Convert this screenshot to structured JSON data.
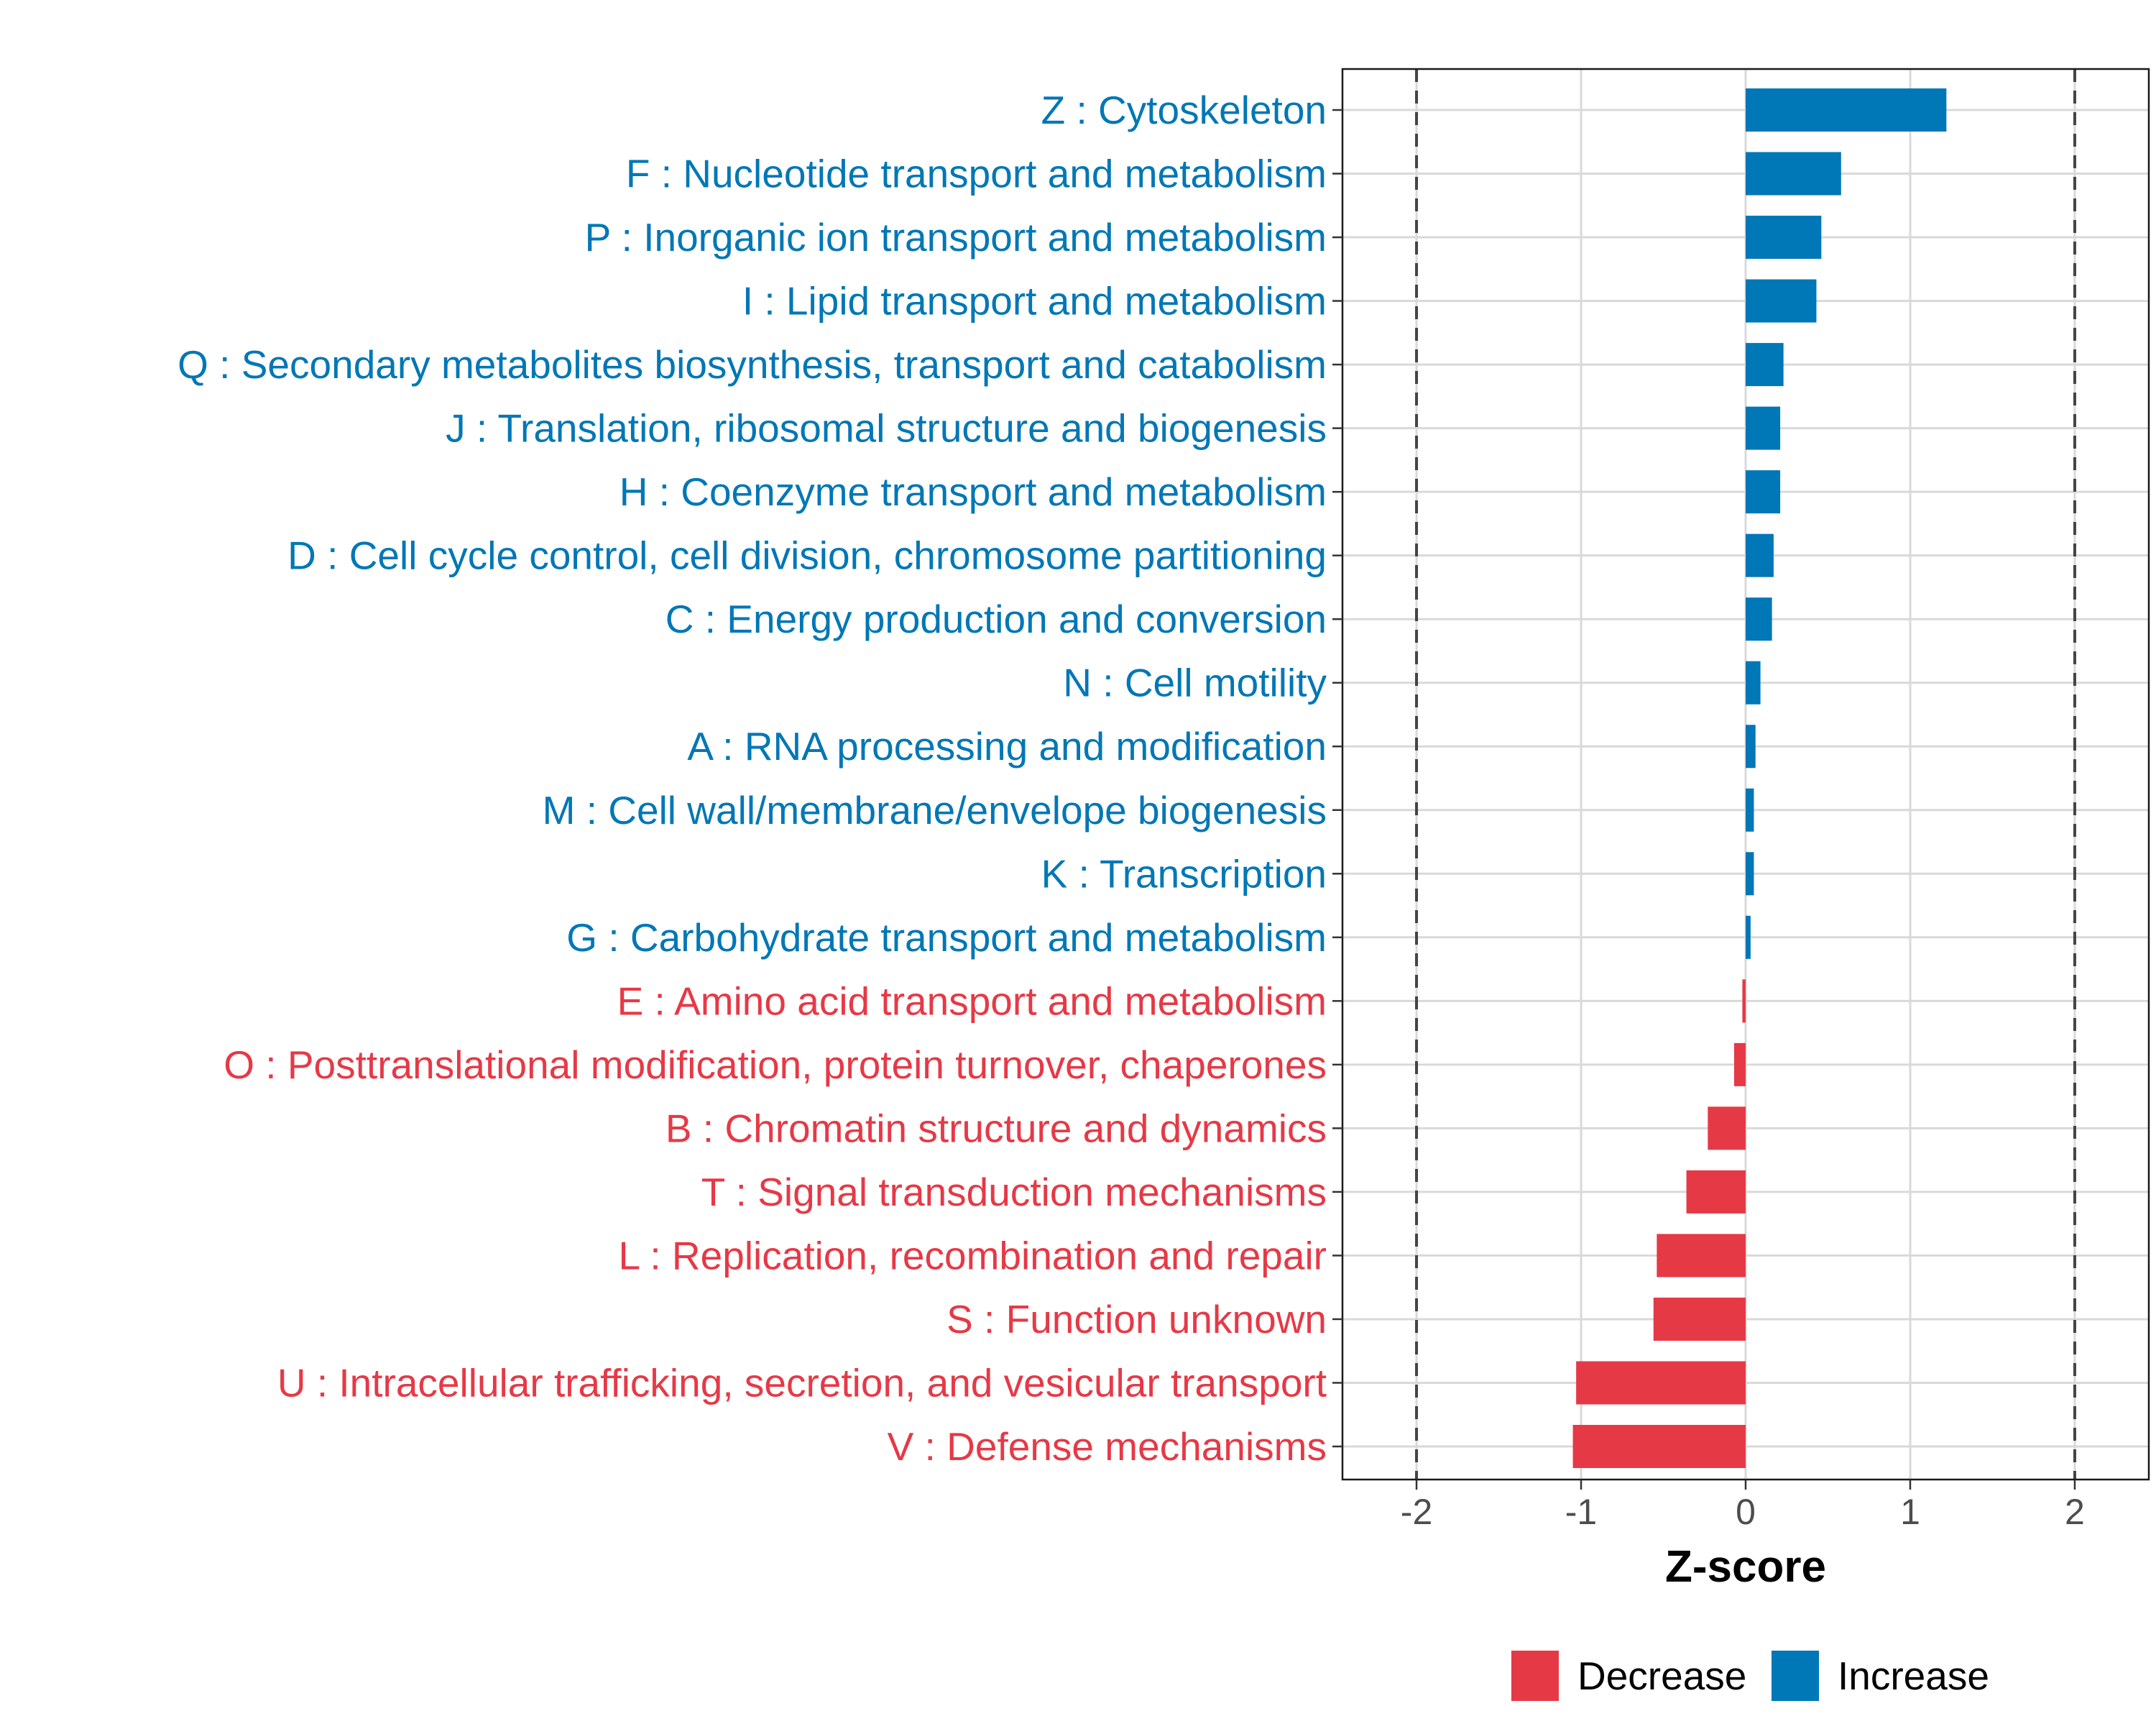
{
  "chart_data": {
    "type": "bar",
    "orientation": "horizontal",
    "xlabel": "Z-score",
    "ylabel": "",
    "xlim": [
      -2.45,
      2.45
    ],
    "xticks": [
      -2,
      -1,
      0,
      1,
      2
    ],
    "xtick_labels": [
      "-2",
      "-1",
      "0",
      "1",
      "2"
    ],
    "reference_lines": [
      -2,
      2
    ],
    "grid": true,
    "legend_position": "bottom",
    "categories": [
      "Z : Cytoskeleton",
      "F : Nucleotide transport and metabolism",
      "P : Inorganic ion transport and metabolism",
      "I : Lipid transport and metabolism",
      "Q : Secondary metabolites biosynthesis, transport and catabolism",
      "J : Translation, ribosomal structure and biogenesis",
      "H : Coenzyme transport and metabolism",
      "D : Cell cycle control, cell division, chromosome partitioning",
      "C : Energy production and conversion",
      "N : Cell motility",
      "A : RNA processing and modification",
      "M : Cell wall/membrane/envelope biogenesis",
      "K : Transcription",
      "G : Carbohydrate transport and metabolism",
      "E : Amino acid transport and metabolism",
      "O : Posttranslational modification, protein turnover, chaperones",
      "B : Chromatin structure and dynamics",
      "T : Signal transduction mechanisms",
      "L : Replication, recombination and repair",
      "S : Function unknown",
      "U : Intracellular trafficking, secretion, and vesicular transport",
      "V : Defense mechanisms"
    ],
    "values": [
      1.22,
      0.58,
      0.46,
      0.43,
      0.23,
      0.21,
      0.21,
      0.17,
      0.16,
      0.09,
      0.06,
      0.05,
      0.05,
      0.03,
      -0.02,
      -0.07,
      -0.23,
      -0.36,
      -0.54,
      -0.56,
      -1.03,
      -1.05
    ],
    "groups": [
      "Increase",
      "Increase",
      "Increase",
      "Increase",
      "Increase",
      "Increase",
      "Increase",
      "Increase",
      "Increase",
      "Increase",
      "Increase",
      "Increase",
      "Increase",
      "Increase",
      "Decrease",
      "Decrease",
      "Decrease",
      "Decrease",
      "Decrease",
      "Decrease",
      "Decrease",
      "Decrease"
    ],
    "legend": [
      {
        "name": "Decrease",
        "color": "#E63946"
      },
      {
        "name": "Increase",
        "color": "#0077B6"
      }
    ],
    "colors": {
      "Increase": "#0077B6",
      "Decrease": "#E63946"
    }
  }
}
